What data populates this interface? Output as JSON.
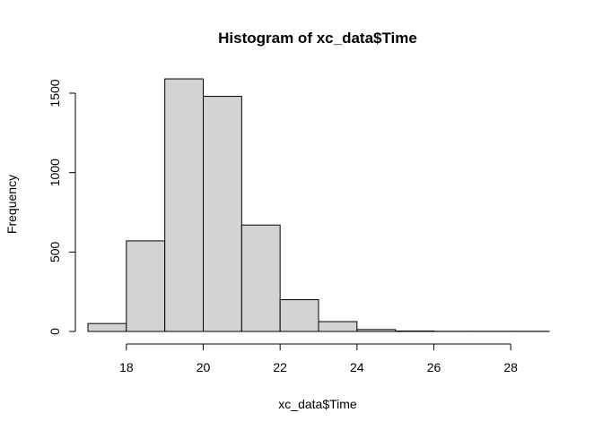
{
  "chart_data": {
    "type": "bar",
    "title": "Histogram of xc_data$Time",
    "xlabel": "xc_data$Time",
    "ylabel": "Frequency",
    "bins": [
      {
        "x0": 17,
        "x1": 18,
        "count": 50
      },
      {
        "x0": 18,
        "x1": 19,
        "count": 570
      },
      {
        "x0": 19,
        "x1": 20,
        "count": 1590
      },
      {
        "x0": 20,
        "x1": 21,
        "count": 1480
      },
      {
        "x0": 21,
        "x1": 22,
        "count": 670
      },
      {
        "x0": 22,
        "x1": 23,
        "count": 200
      },
      {
        "x0": 23,
        "x1": 24,
        "count": 62
      },
      {
        "x0": 24,
        "x1": 25,
        "count": 12
      },
      {
        "x0": 25,
        "x1": 26,
        "count": 3
      },
      {
        "x0": 26,
        "x1": 27,
        "count": 1
      },
      {
        "x0": 27,
        "x1": 28,
        "count": 1
      },
      {
        "x0": 28,
        "x1": 29,
        "count": 1
      }
    ],
    "xlim": [
      17,
      29
    ],
    "ylim": [
      0,
      1600
    ],
    "x_ticks": [
      18,
      20,
      22,
      24,
      26,
      28
    ],
    "y_ticks": [
      0,
      500,
      1000,
      1500
    ],
    "grid": false
  }
}
